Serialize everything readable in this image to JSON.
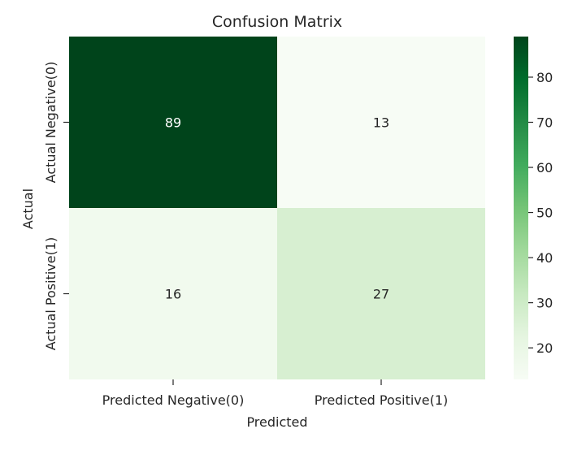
{
  "chart_data": {
    "type": "heatmap",
    "title": "Confusion Matrix",
    "xlabel": "Predicted",
    "ylabel": "Actual",
    "x_categories": [
      "Predicted Negative(0)",
      "Predicted Positive(1)"
    ],
    "y_categories": [
      "Actual Negative(0)",
      "Actual Positive(1)"
    ],
    "values": [
      [
        89,
        13
      ],
      [
        16,
        27
      ]
    ],
    "colormap": "Greens",
    "color_low": "#f7fcf5",
    "color_high": "#00441b",
    "colorbar": {
      "range": [
        13,
        89
      ],
      "ticks": [
        20,
        30,
        40,
        50,
        60,
        70,
        80
      ]
    }
  }
}
